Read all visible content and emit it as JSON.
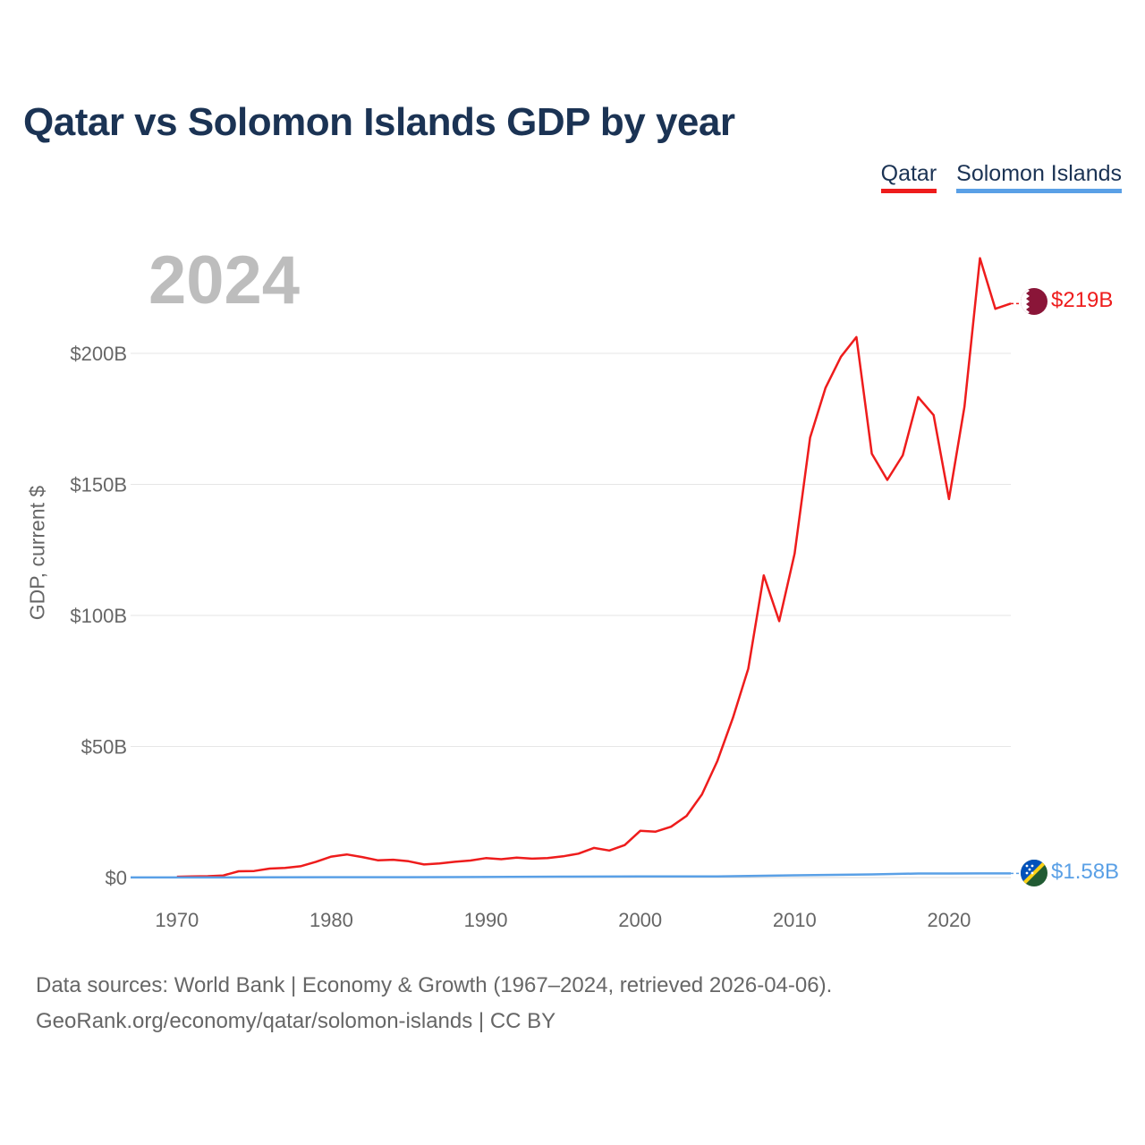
{
  "title": "Qatar vs Solomon Islands GDP by year",
  "legend": {
    "qatar": "Qatar",
    "solomon": "Solomon Islands"
  },
  "current_year": "2024",
  "colors": {
    "qatar": "#ee1c1c",
    "solomon": "#5aa0e6",
    "title": "#1b3354"
  },
  "end_labels": {
    "qatar": "$219B",
    "solomon": "$1.58B"
  },
  "footer": {
    "line1": "Data sources: World Bank | Economy & Growth (1967–2024, retrieved 2026-04-06).",
    "line2": "GeoRank.org/economy/qatar/solomon-islands | CC BY"
  },
  "chart_data": {
    "type": "line",
    "title": "Qatar vs Solomon Islands GDP by year",
    "xlabel": "",
    "ylabel": "GDP, current $",
    "xlim": [
      1967,
      2024
    ],
    "ylim": [
      0,
      200
    ],
    "unit": "billions USD",
    "x_ticks": [
      1970,
      1980,
      1990,
      2000,
      2010,
      2020
    ],
    "y_ticks": [
      {
        "value": 0,
        "label": "$0"
      },
      {
        "value": 50,
        "label": "$50B"
      },
      {
        "value": 100,
        "label": "$100B"
      },
      {
        "value": 150,
        "label": "$150B"
      },
      {
        "value": 200,
        "label": "$200B"
      }
    ],
    "grid": true,
    "legend_position": "top-right",
    "series": [
      {
        "name": "Qatar",
        "color": "#ee1c1c",
        "x": [
          1970,
          1971,
          1972,
          1973,
          1974,
          1975,
          1976,
          1977,
          1978,
          1979,
          1980,
          1981,
          1982,
          1983,
          1984,
          1985,
          1986,
          1987,
          1988,
          1989,
          1990,
          1991,
          1992,
          1993,
          1994,
          1995,
          1996,
          1997,
          1998,
          1999,
          2000,
          2001,
          2002,
          2003,
          2004,
          2005,
          2006,
          2007,
          2008,
          2009,
          2010,
          2011,
          2012,
          2013,
          2014,
          2015,
          2016,
          2017,
          2018,
          2019,
          2020,
          2021,
          2022,
          2023,
          2024
        ],
        "values": [
          0.3,
          0.4,
          0.5,
          0.8,
          2.4,
          2.5,
          3.4,
          3.7,
          4.3,
          6.0,
          8.0,
          8.8,
          7.8,
          6.6,
          6.8,
          6.2,
          5.0,
          5.4,
          6.0,
          6.5,
          7.4,
          7.0,
          7.6,
          7.2,
          7.4,
          8.1,
          9.1,
          11.3,
          10.3,
          12.4,
          17.8,
          17.5,
          19.4,
          23.5,
          31.7,
          44.5,
          60.9,
          79.7,
          115.3,
          97.8,
          123.6,
          167.8,
          186.8,
          198.7,
          206.2,
          161.7,
          151.7,
          161.1,
          183.3,
          176.4,
          144.4,
          179.7,
          236.3,
          217.0,
          219.0
        ]
      },
      {
        "name": "Solomon Islands",
        "color": "#5aa0e6",
        "x": [
          1967,
          1970,
          1975,
          1980,
          1985,
          1990,
          1995,
          2000,
          2005,
          2010,
          2015,
          2018,
          2020,
          2022,
          2024
        ],
        "values": [
          0.03,
          0.04,
          0.07,
          0.12,
          0.15,
          0.21,
          0.34,
          0.44,
          0.42,
          0.86,
          1.18,
          1.55,
          1.55,
          1.56,
          1.58
        ]
      }
    ]
  }
}
